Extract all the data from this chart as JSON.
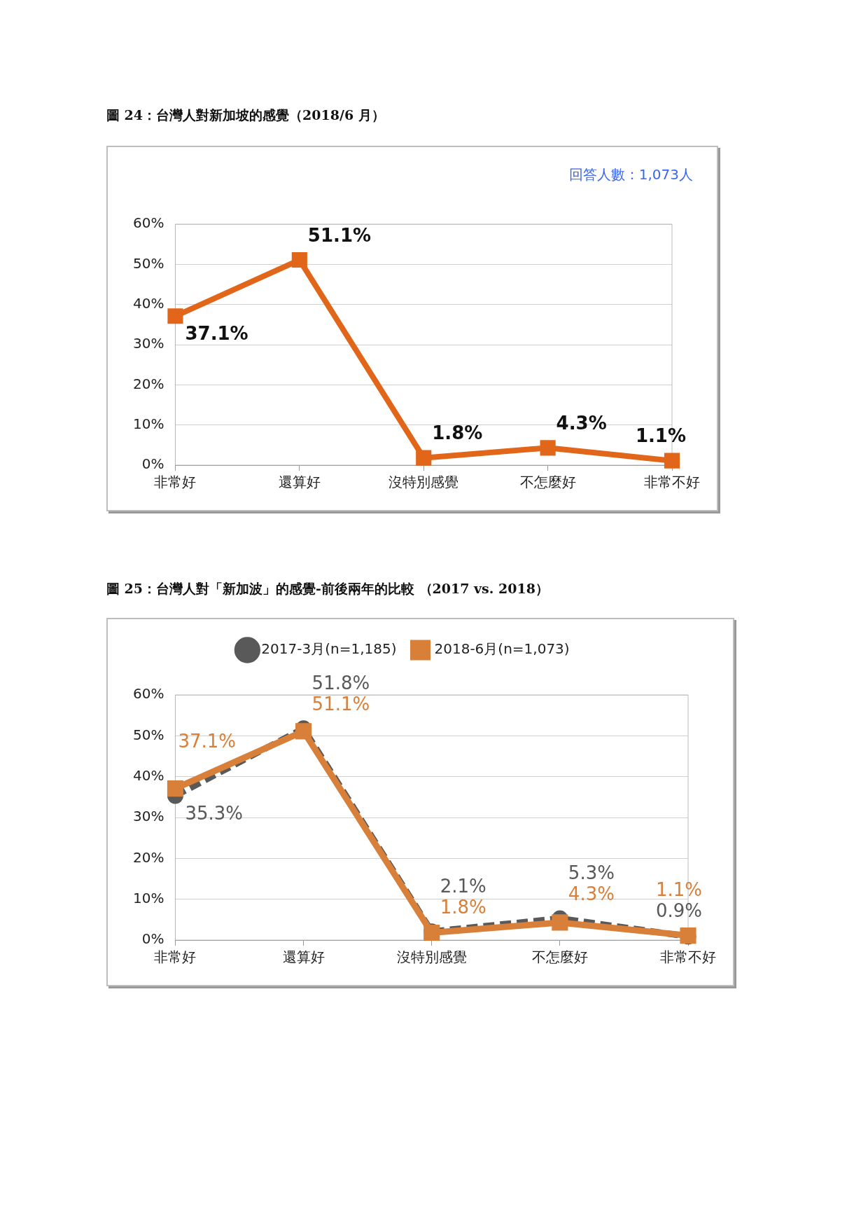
{
  "chart_data": [
    {
      "type": "line",
      "title": "圖 24：台灣人對新加坡的感覺（2018/6 月）",
      "annotations": [
        "回答人數：1,073人"
      ],
      "categories": [
        "非常好",
        "還算好",
        "沒特別感覺",
        "不怎麼好",
        "非常不好"
      ],
      "series": [
        {
          "color": "#e2661a",
          "values": [
            37.1,
            51.1,
            1.8,
            4.3,
            1.1
          ],
          "value_labels": [
            "37.1%",
            "51.1%",
            "1.8%",
            "4.3%",
            "1.1%"
          ]
        }
      ],
      "ylim": [
        0,
        60
      ],
      "yticks": [
        {
          "value": 0,
          "label": "0%"
        },
        {
          "value": 10,
          "label": "10%"
        },
        {
          "value": 20,
          "label": "20%"
        },
        {
          "value": 30,
          "label": "30%"
        },
        {
          "value": 40,
          "label": "40%"
        },
        {
          "value": 50,
          "label": "50%"
        },
        {
          "value": 60,
          "label": "60%"
        }
      ],
      "grid": "y",
      "marker": "square",
      "line_style": "solid"
    },
    {
      "type": "line",
      "title": "圖 25：台灣人對「新加波」的感覺-前後兩年的比較 （2017 vs. 2018）",
      "categories": [
        "非常好",
        "還算好",
        "沒特別感覺",
        "不怎麼好",
        "非常不好"
      ],
      "series": [
        {
          "name": "2017-3月(n=1,185)",
          "color": "#595959",
          "marker": "circle",
          "line_style": "dashed",
          "values": [
            35.3,
            51.8,
            2.1,
            5.3,
            0.9
          ],
          "value_labels": [
            "35.3%",
            "51.8%",
            "2.1%",
            "5.3%",
            "0.9%"
          ]
        },
        {
          "name": "2018-6月(n=1,073)",
          "color": "#d8803a",
          "marker": "square",
          "line_style": "solid",
          "values": [
            37.1,
            51.1,
            1.8,
            4.3,
            1.1
          ],
          "value_labels": [
            "37.1%",
            "51.1%",
            "1.8%",
            "4.3%",
            "1.1%"
          ]
        }
      ],
      "ylim": [
        0,
        60
      ],
      "yticks": [
        {
          "value": 0,
          "label": "0%"
        },
        {
          "value": 10,
          "label": "10%"
        },
        {
          "value": 20,
          "label": "20%"
        },
        {
          "value": 30,
          "label": "30%"
        },
        {
          "value": 40,
          "label": "40%"
        },
        {
          "value": 50,
          "label": "50%"
        },
        {
          "value": 60,
          "label": "60%"
        }
      ],
      "grid": "y",
      "legend": "top"
    }
  ]
}
